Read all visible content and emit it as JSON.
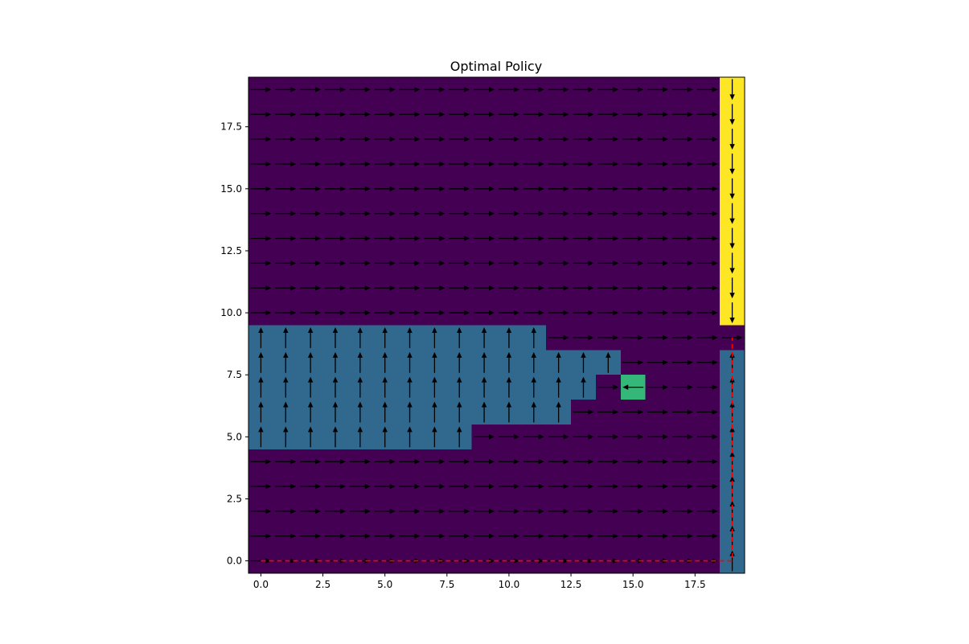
{
  "chart_data": {
    "type": "heatmap",
    "title": "Optimal Policy",
    "xlabel": "",
    "ylabel": "",
    "xlim": [
      -0.5,
      19.5
    ],
    "ylim": [
      -0.5,
      19.5
    ],
    "grid": false,
    "x_ticks": [
      "0.0",
      "2.5",
      "5.0",
      "7.5",
      "10.0",
      "12.5",
      "15.0",
      "17.5"
    ],
    "y_ticks": [
      "0.0",
      "2.5",
      "5.0",
      "7.5",
      "10.0",
      "12.5",
      "15.0",
      "17.5"
    ],
    "colors": {
      "background": "#440154",
      "obstacle": "#31688e",
      "goal": "#35b779",
      "wind": "#fde725",
      "arrow": "#000000",
      "path": "#ff0000"
    },
    "regions": [
      {
        "kind": "wind",
        "x": [
          19,
          19
        ],
        "y": [
          10,
          19
        ]
      },
      {
        "kind": "obstacle",
        "x": [
          19,
          19
        ],
        "y": [
          0,
          8
        ]
      },
      {
        "kind": "obstacle",
        "x": [
          0,
          11
        ],
        "y": [
          9,
          9
        ]
      },
      {
        "kind": "obstacle",
        "x": [
          0,
          14
        ],
        "y": [
          8,
          8
        ]
      },
      {
        "kind": "obstacle",
        "x": [
          0,
          13
        ],
        "y": [
          7,
          7
        ]
      },
      {
        "kind": "obstacle",
        "x": [
          0,
          12
        ],
        "y": [
          6,
          6
        ]
      },
      {
        "kind": "obstacle",
        "x": [
          0,
          8
        ],
        "y": [
          5,
          5
        ]
      },
      {
        "kind": "goal",
        "x": [
          15,
          15
        ],
        "y": [
          7,
          7
        ]
      }
    ],
    "policy_default": "right",
    "policy_overrides": [
      {
        "action": "down",
        "x": [
          19,
          19
        ],
        "y": [
          10,
          19
        ]
      },
      {
        "action": "up",
        "x": [
          19,
          19
        ],
        "y": [
          0,
          8
        ]
      },
      {
        "action": "up",
        "x": [
          0,
          11
        ],
        "y": [
          9,
          9
        ]
      },
      {
        "action": "up",
        "x": [
          0,
          14
        ],
        "y": [
          8,
          8
        ]
      },
      {
        "action": "up",
        "x": [
          0,
          13
        ],
        "y": [
          7,
          7
        ]
      },
      {
        "action": "up",
        "x": [
          0,
          12
        ],
        "y": [
          6,
          6
        ]
      },
      {
        "action": "up",
        "x": [
          0,
          8
        ],
        "y": [
          5,
          5
        ]
      },
      {
        "action": "left",
        "x": [
          15,
          15
        ],
        "y": [
          7,
          7
        ]
      }
    ],
    "path": {
      "style": "dashed",
      "points": [
        [
          0,
          0
        ],
        [
          19,
          0
        ],
        [
          19,
          9
        ]
      ]
    }
  }
}
